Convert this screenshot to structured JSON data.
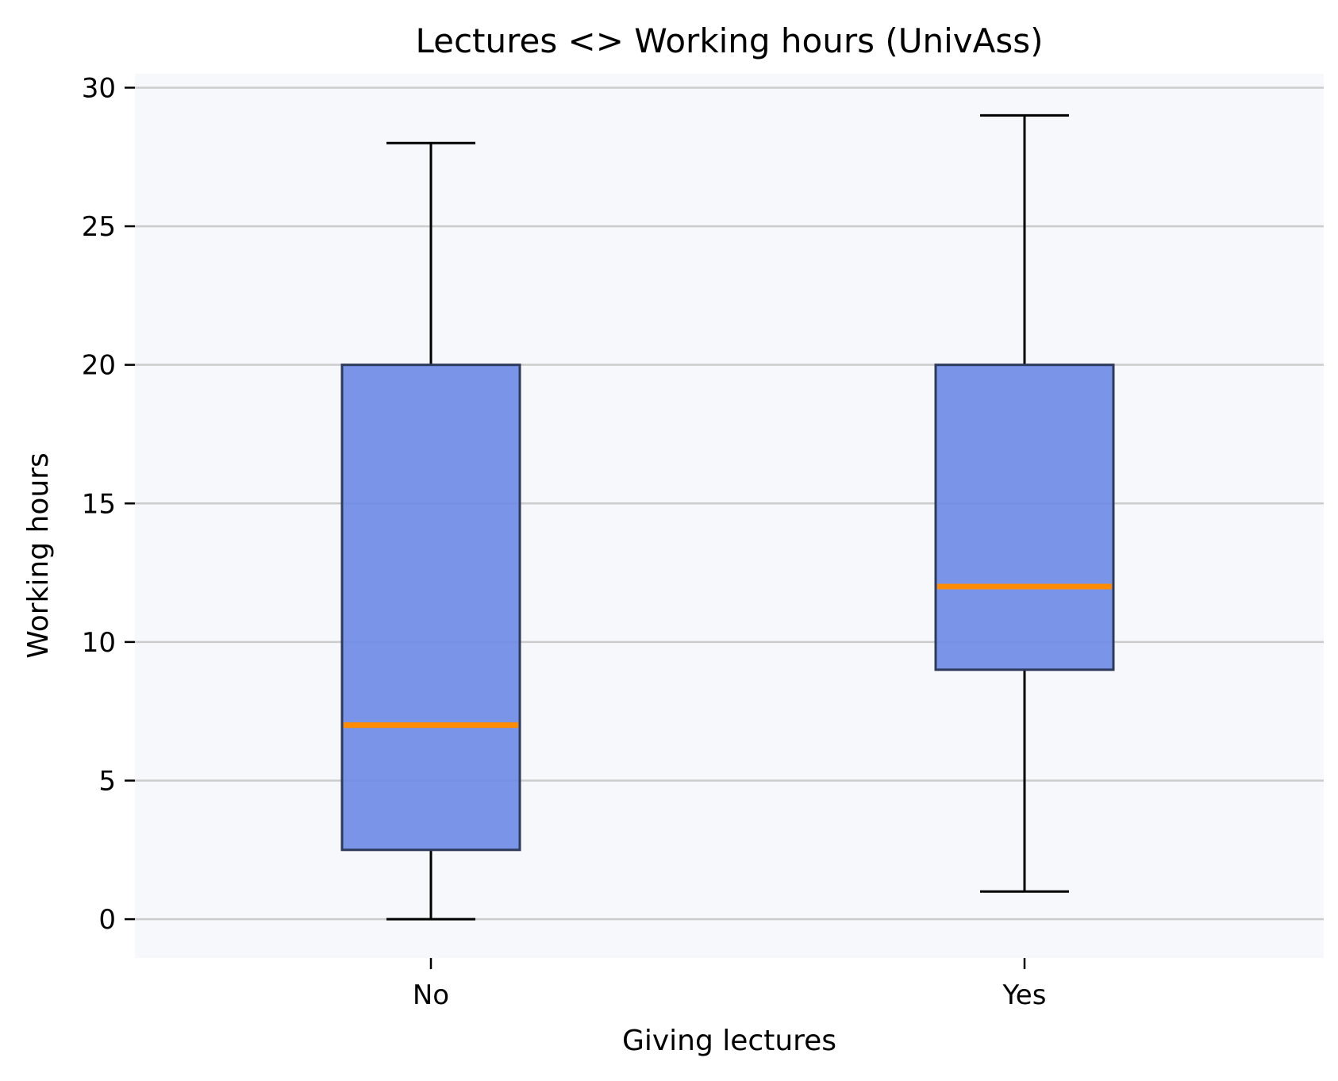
{
  "chart_data": {
    "type": "box",
    "title": "Lectures <> Working hours (UnivAss)",
    "xlabel": "Giving lectures",
    "ylabel": "Working hours",
    "categories": [
      "No",
      "Yes"
    ],
    "boxes": [
      {
        "category": "No",
        "whisker_low": 0,
        "q1": 2.5,
        "median": 7,
        "q3": 20,
        "whisker_high": 28
      },
      {
        "category": "Yes",
        "whisker_low": 1,
        "q1": 9,
        "median": 12,
        "q3": 20,
        "whisker_high": 29
      }
    ],
    "ylim": [
      -1.4,
      30.5
    ],
    "yticks": [
      0,
      5,
      10,
      15,
      20,
      25,
      30
    ],
    "ytick_labels": [
      "0",
      "5",
      "10",
      "15",
      "20",
      "25",
      "30"
    ],
    "grid": "horizontal",
    "colors": {
      "plot_background": "#f7f8fc",
      "box_fill": "#6f8ce6",
      "box_edge": "#2e3a5c",
      "median": "#ff8c00",
      "whisker": "#000000",
      "grid": "#cccccc"
    }
  }
}
